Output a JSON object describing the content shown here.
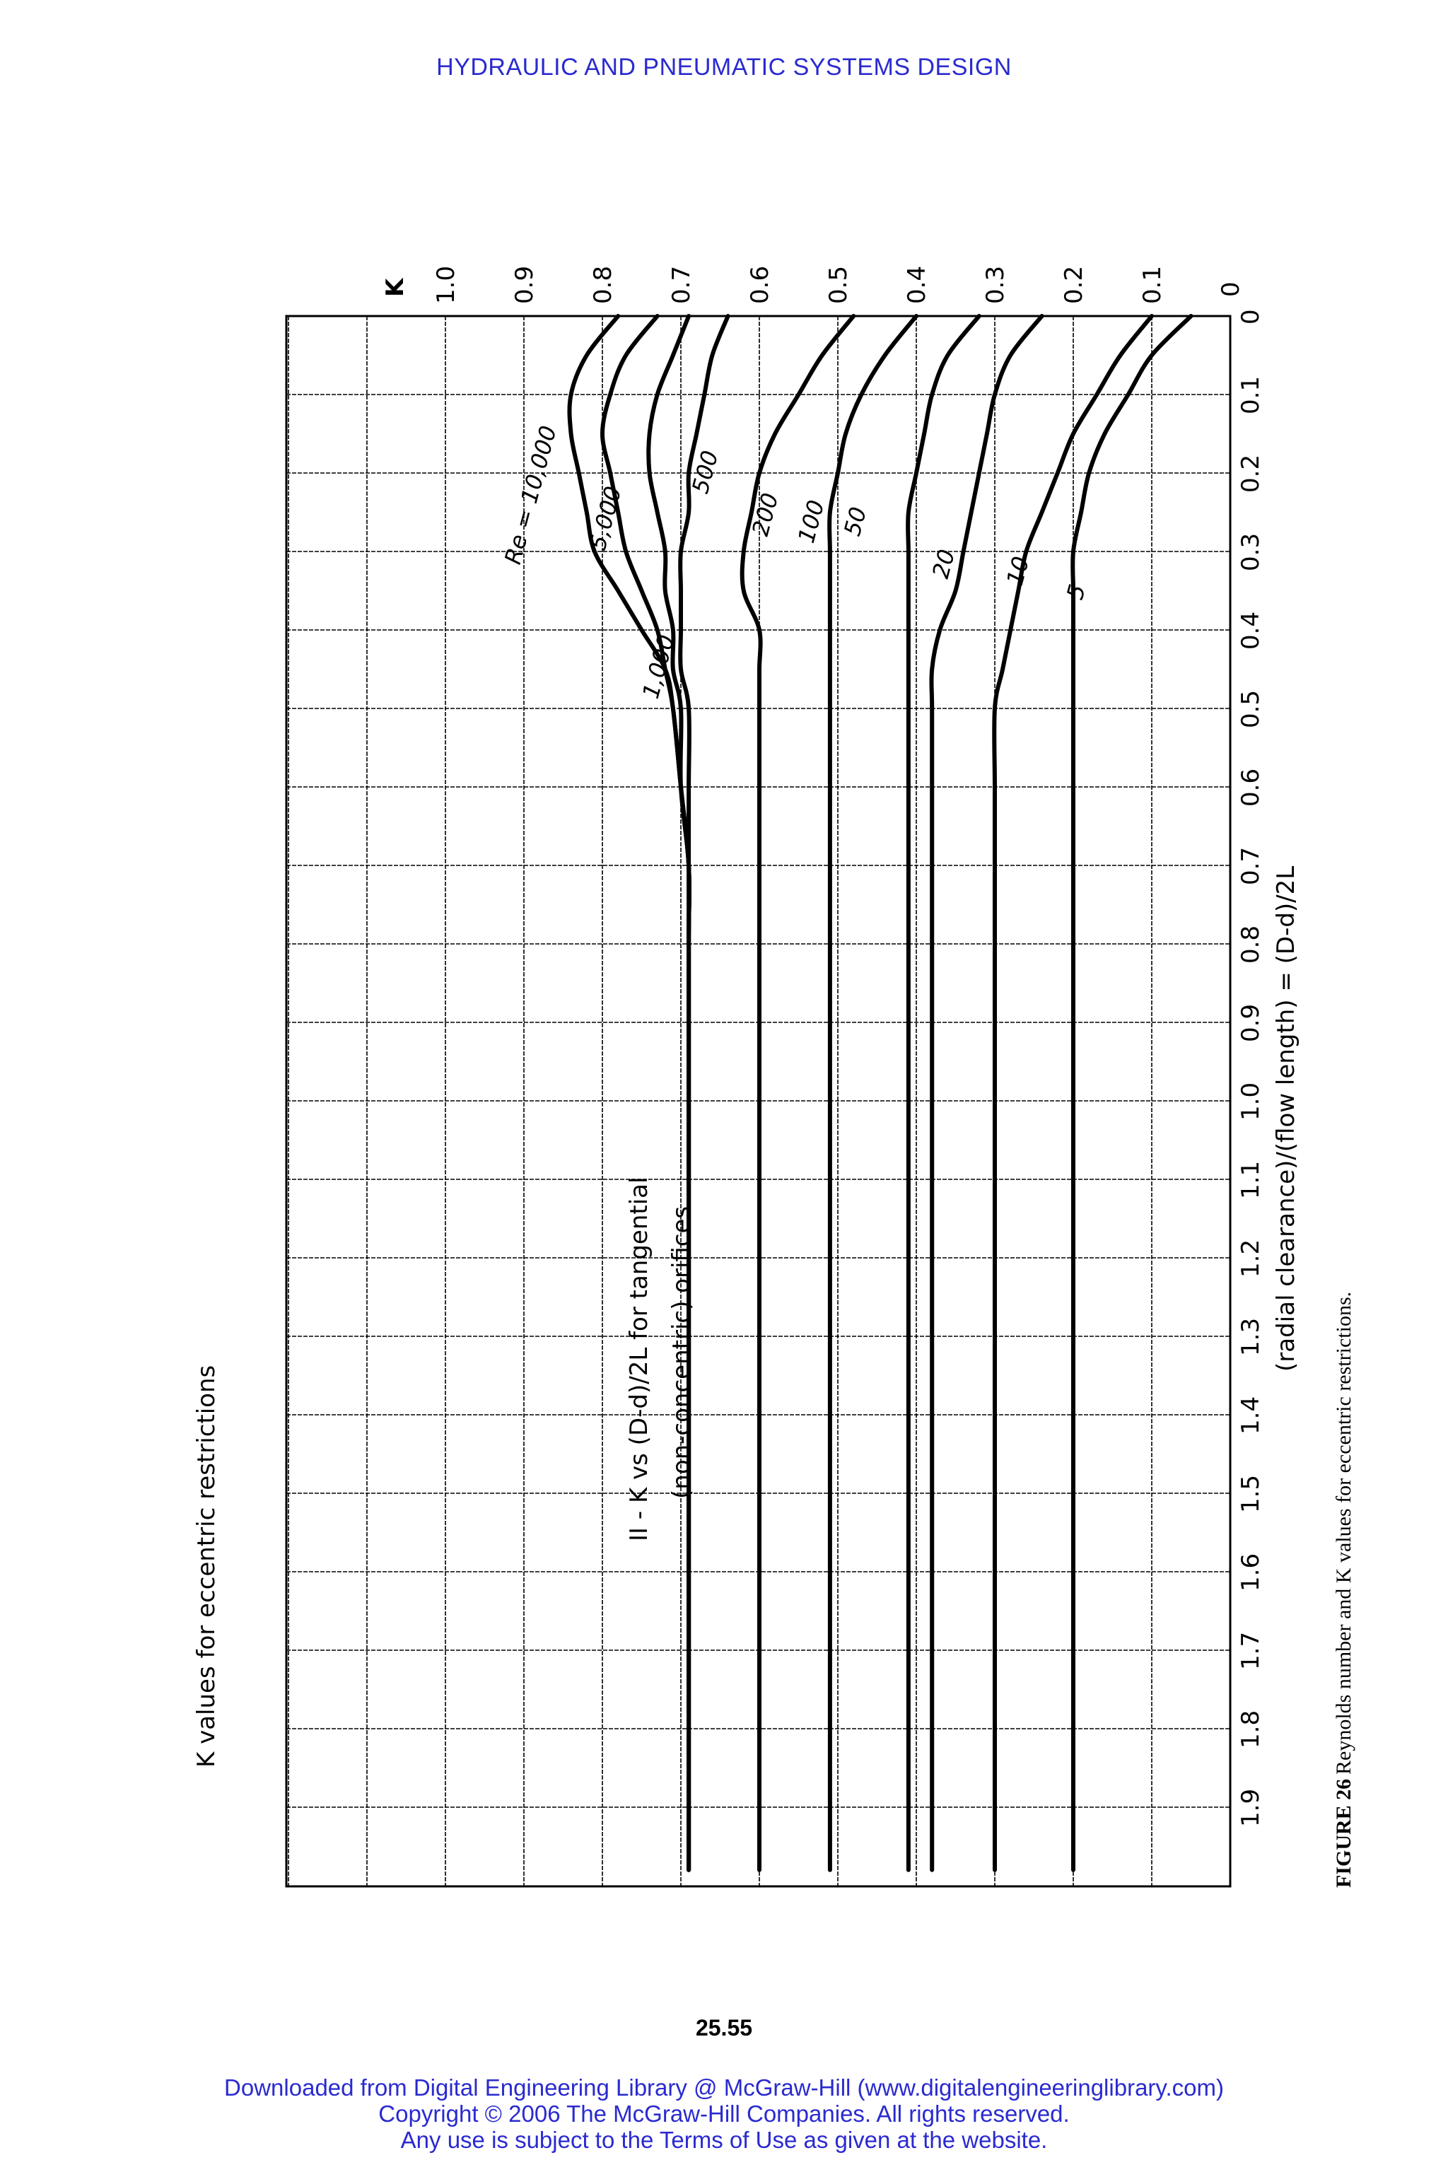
{
  "page": {
    "header": "HYDRAULIC AND PNEUMATIC SYSTEMS DESIGN",
    "page_number": "25.55",
    "footer_lines": [
      "Downloaded from Digital Engineering Library @ McGraw-Hill (www.digitalengineeringlibrary.com)",
      "Copyright © 2006 The McGraw-Hill Companies. All rights reserved.",
      "Any use is subject to the Terms of Use as given at the website."
    ],
    "figure_label": "FIGURE 26",
    "figure_caption": "Reynolds number and K values for eccentric restrictions."
  },
  "colors": {
    "header_text": "#2a2ad0",
    "ink": "#000000"
  },
  "chart_data": {
    "type": "line",
    "title": "K values for eccentric restrictions",
    "subtitle_line1": "II - K vs (D-d)/2L for tangential",
    "subtitle_line2": "(non-concentric) orifices",
    "xlabel": "(radial clearance)/(flow length) = (D-d)/2L",
    "ylabel": "K",
    "xlim": [
      0,
      2.0
    ],
    "ylim": [
      0,
      1.0
    ],
    "grid": true,
    "x_ticks": [
      "0",
      "0.1",
      "0.2",
      "0.3",
      "0.4",
      "0.5",
      "0.6",
      "0.7",
      "0.8",
      "0.9",
      "1.0",
      "1.1",
      "1.2",
      "1.3",
      "1.4",
      "1.5",
      "1.6",
      "1.7",
      "1.8",
      "1.9"
    ],
    "y_ticks": [
      "0",
      "0.1",
      "0.2",
      "0.3",
      "0.4",
      "0.5",
      "0.6",
      "0.7",
      "0.8",
      "0.9",
      "1.0"
    ],
    "series": [
      {
        "name": "Re = 10,000",
        "x": [
          0,
          0.05,
          0.1,
          0.15,
          0.2,
          0.25,
          0.3,
          0.35,
          0.4,
          0.45,
          0.5,
          0.6,
          0.7,
          0.8,
          1.0,
          1.5,
          1.98
        ],
        "y": [
          0.78,
          0.82,
          0.84,
          0.84,
          0.83,
          0.82,
          0.81,
          0.78,
          0.75,
          0.72,
          0.71,
          0.7,
          0.69,
          0.69,
          0.69,
          0.69,
          0.69
        ]
      },
      {
        "name": "5,000",
        "x": [
          0,
          0.05,
          0.1,
          0.15,
          0.2,
          0.25,
          0.3,
          0.35,
          0.4,
          0.45,
          0.5,
          0.6,
          0.7,
          0.8,
          1.0,
          1.5,
          1.98
        ],
        "y": [
          0.73,
          0.77,
          0.79,
          0.8,
          0.79,
          0.78,
          0.77,
          0.75,
          0.73,
          0.72,
          0.71,
          0.7,
          0.69,
          0.69,
          0.69,
          0.69,
          0.69
        ]
      },
      {
        "name": "1,000",
        "x": [
          0,
          0.05,
          0.1,
          0.15,
          0.2,
          0.25,
          0.3,
          0.35,
          0.4,
          0.45,
          0.5,
          0.6,
          0.7,
          0.8,
          1.0,
          1.5,
          1.98
        ],
        "y": [
          0.69,
          0.71,
          0.73,
          0.74,
          0.74,
          0.73,
          0.72,
          0.72,
          0.71,
          0.71,
          0.7,
          0.7,
          0.69,
          0.69,
          0.69,
          0.69,
          0.69
        ]
      },
      {
        "name": "500",
        "x": [
          0,
          0.05,
          0.1,
          0.15,
          0.2,
          0.25,
          0.3,
          0.35,
          0.4,
          0.45,
          0.5,
          0.6,
          0.7,
          0.8,
          1.0,
          1.5,
          1.98
        ],
        "y": [
          0.64,
          0.66,
          0.67,
          0.68,
          0.69,
          0.69,
          0.7,
          0.7,
          0.7,
          0.7,
          0.69,
          0.69,
          0.69,
          0.69,
          0.69,
          0.69,
          0.69
        ]
      },
      {
        "name": "200",
        "x": [
          0,
          0.05,
          0.1,
          0.15,
          0.2,
          0.25,
          0.3,
          0.35,
          0.4,
          0.45,
          0.5,
          0.6,
          0.7,
          0.8,
          1.0,
          1.5,
          1.98
        ],
        "y": [
          0.48,
          0.52,
          0.55,
          0.58,
          0.6,
          0.61,
          0.62,
          0.62,
          0.6,
          0.6,
          0.6,
          0.6,
          0.6,
          0.6,
          0.6,
          0.6,
          0.6
        ]
      },
      {
        "name": "100",
        "x": [
          0,
          0.05,
          0.1,
          0.15,
          0.2,
          0.25,
          0.3,
          0.35,
          0.4,
          0.45,
          0.5,
          0.6,
          0.7,
          0.8,
          1.0,
          1.5,
          1.98
        ],
        "y": [
          0.4,
          0.44,
          0.47,
          0.49,
          0.5,
          0.51,
          0.51,
          0.51,
          0.51,
          0.51,
          0.51,
          0.51,
          0.51,
          0.51,
          0.51,
          0.51,
          0.51
        ]
      },
      {
        "name": "50",
        "x": [
          0,
          0.05,
          0.1,
          0.15,
          0.2,
          0.25,
          0.3,
          0.35,
          0.4,
          0.45,
          0.5,
          0.6,
          0.7,
          0.8,
          1.0,
          1.5,
          1.98
        ],
        "y": [
          0.32,
          0.36,
          0.38,
          0.39,
          0.4,
          0.41,
          0.41,
          0.41,
          0.41,
          0.41,
          0.41,
          0.41,
          0.41,
          0.41,
          0.41,
          0.41,
          0.41
        ]
      },
      {
        "name": "20",
        "x": [
          0,
          0.05,
          0.1,
          0.15,
          0.2,
          0.25,
          0.3,
          0.35,
          0.4,
          0.45,
          0.5,
          0.6,
          0.7,
          0.8,
          1.0,
          1.5,
          1.98
        ],
        "y": [
          0.24,
          0.28,
          0.3,
          0.31,
          0.32,
          0.33,
          0.34,
          0.35,
          0.37,
          0.38,
          0.38,
          0.38,
          0.38,
          0.38,
          0.38,
          0.38,
          0.38
        ]
      },
      {
        "name": "10",
        "x": [
          0,
          0.05,
          0.1,
          0.15,
          0.2,
          0.25,
          0.3,
          0.35,
          0.4,
          0.45,
          0.5,
          0.6,
          0.7,
          0.8,
          1.0,
          1.5,
          1.98
        ],
        "y": [
          0.1,
          0.14,
          0.17,
          0.2,
          0.22,
          0.24,
          0.26,
          0.27,
          0.28,
          0.29,
          0.3,
          0.3,
          0.3,
          0.3,
          0.3,
          0.3,
          0.3
        ]
      },
      {
        "name": "5",
        "x": [
          0,
          0.05,
          0.1,
          0.15,
          0.2,
          0.25,
          0.3,
          0.35,
          0.4,
          0.45,
          0.5,
          0.6,
          0.7,
          0.8,
          1.0,
          1.5,
          1.98
        ],
        "y": [
          0.05,
          0.1,
          0.13,
          0.16,
          0.18,
          0.19,
          0.2,
          0.2,
          0.2,
          0.2,
          0.2,
          0.2,
          0.2,
          0.2,
          0.2,
          0.2,
          0.2
        ]
      }
    ],
    "curve_labels": [
      "Re = 10,000",
      "5,000",
      "1,000",
      "500",
      "200",
      "100",
      "50",
      "20",
      "10",
      "5"
    ]
  }
}
